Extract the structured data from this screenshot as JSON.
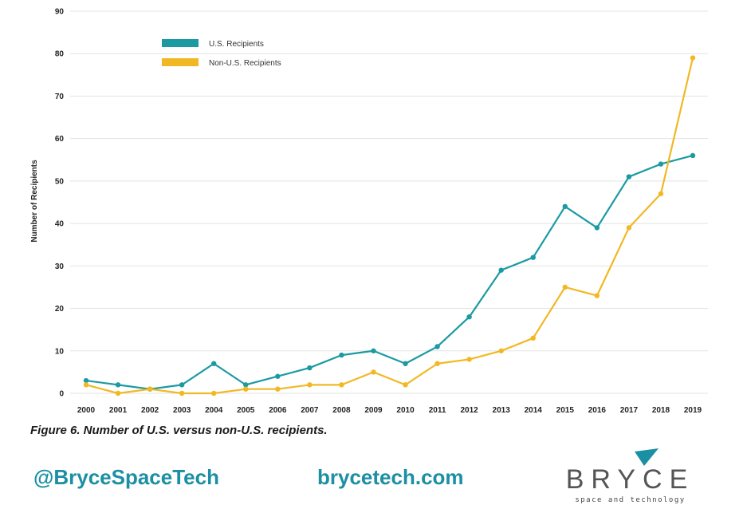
{
  "chart_data": {
    "type": "line",
    "title": "",
    "xlabel": "",
    "ylabel": "Number of Recipients",
    "ylim": [
      0,
      90
    ],
    "yticks": [
      0,
      10,
      20,
      30,
      40,
      50,
      60,
      70,
      80,
      90
    ],
    "categories": [
      "2000",
      "2001",
      "2002",
      "2003",
      "2004",
      "2005",
      "2006",
      "2007",
      "2008",
      "2009",
      "2010",
      "2011",
      "2012",
      "2013",
      "2014",
      "2015",
      "2016",
      "2017",
      "2018",
      "2019"
    ],
    "grid": true,
    "legend_position": "top-left",
    "series": [
      {
        "name": "U.S. Recipients",
        "color": "#1b9aa2",
        "values": [
          3,
          2,
          1,
          2,
          7,
          2,
          4,
          6,
          9,
          10,
          7,
          11,
          18,
          29,
          32,
          44,
          39,
          51,
          54,
          56
        ]
      },
      {
        "name": "Non-U.S. Recipients",
        "color": "#f2b824",
        "values": [
          2,
          0,
          1,
          0,
          0,
          1,
          1,
          2,
          2,
          5,
          2,
          7,
          8,
          10,
          13,
          25,
          23,
          39,
          47,
          79
        ]
      }
    ]
  },
  "caption": "Figure 6. Number of U.S. versus non-U.S. recipients.",
  "footer": {
    "handle": "@BryceSpaceTech",
    "website": "brycetech.com",
    "logo_word": "BRYCE",
    "logo_tagline": "space and technology",
    "accent_color": "#1b8fa3"
  }
}
